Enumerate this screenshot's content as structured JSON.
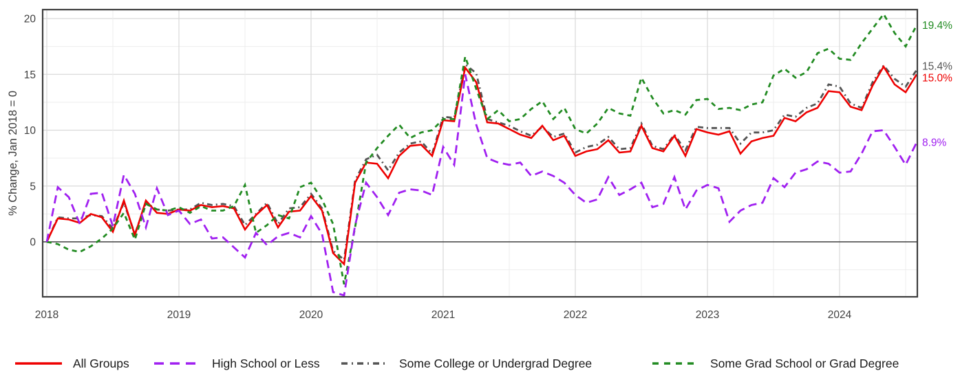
{
  "figure": {
    "ylabel": "% Change, Jan 2018 = 0",
    "background": "#ffffff",
    "axis_text_color": "#404040",
    "grid_major_color": "#d9d9d9",
    "grid_minor_color": "#ededed",
    "border_color": "#3d3d3d",
    "zero_line_color": "#404040"
  },
  "chart_data": {
    "type": "line",
    "title": "",
    "xlabel": "",
    "ylabel": "% Change, Jan 2018 = 0",
    "x_unit": "month",
    "x_start": "2018-01",
    "x_end": "2024-08",
    "x_tick_labels": [
      "2018",
      "2019",
      "2020",
      "2021",
      "2022",
      "2023",
      "2024"
    ],
    "y_ticks": [
      0,
      5,
      10,
      15,
      20
    ],
    "y_minor_ticks": [
      -2.5,
      2.5,
      7.5,
      12.5,
      17.5
    ],
    "ylim": [
      -4.9,
      20.8
    ],
    "grid": true,
    "legend_position": "bottom",
    "series": [
      {
        "name": "All Groups",
        "color": "#ee0000",
        "style": "solid",
        "end_label": "15.0%",
        "values": [
          0.0,
          2.1,
          2.0,
          1.7,
          2.5,
          2.2,
          0.9,
          3.7,
          0.6,
          3.7,
          2.6,
          2.5,
          2.9,
          2.8,
          3.3,
          3.1,
          3.2,
          3.0,
          1.1,
          2.4,
          3.3,
          1.3,
          2.7,
          2.8,
          4.1,
          2.8,
          -1.0,
          -2.0,
          5.3,
          7.1,
          7.0,
          5.7,
          7.7,
          8.6,
          8.7,
          7.7,
          10.9,
          10.8,
          15.6,
          14.3,
          10.7,
          10.6,
          10.1,
          9.6,
          9.3,
          10.4,
          9.1,
          9.5,
          7.7,
          8.1,
          8.3,
          9.1,
          8.0,
          8.1,
          10.4,
          8.4,
          8.1,
          9.5,
          7.7,
          10.1,
          9.8,
          9.6,
          9.9,
          7.9,
          9.0,
          9.3,
          9.5,
          11.1,
          10.8,
          11.6,
          12.0,
          13.5,
          13.4,
          12.1,
          11.8,
          14.0,
          15.7,
          14.1,
          13.4,
          15.0
        ]
      },
      {
        "name": "High School or Less",
        "color": "#a020f0",
        "style": "dashed",
        "end_label": "8.9%",
        "values": [
          0.0,
          4.9,
          4.0,
          1.6,
          4.3,
          4.4,
          1.4,
          6.0,
          4.3,
          1.3,
          4.8,
          2.4,
          2.8,
          1.6,
          2.0,
          0.3,
          0.4,
          -0.5,
          -1.4,
          0.8,
          -0.3,
          0.5,
          0.8,
          0.4,
          2.3,
          0.7,
          -4.5,
          -4.8,
          1.5,
          5.3,
          4.0,
          2.4,
          4.4,
          4.7,
          4.6,
          4.2,
          8.5,
          6.9,
          15.0,
          10.5,
          7.5,
          7.1,
          6.9,
          7.1,
          5.9,
          6.3,
          5.9,
          5.3,
          4.2,
          3.5,
          3.8,
          5.8,
          4.2,
          4.7,
          5.3,
          3.1,
          3.4,
          5.8,
          2.9,
          4.6,
          5.1,
          4.8,
          1.8,
          2.8,
          3.3,
          3.5,
          5.7,
          4.9,
          6.2,
          6.5,
          7.2,
          7.0,
          6.2,
          6.3,
          7.9,
          9.9,
          10.0,
          8.5,
          6.9,
          8.9
        ]
      },
      {
        "name": "Some College or Undergrad Degree",
        "color": "#545454",
        "style": "dashdot",
        "end_label": "15.4%",
        "values": [
          0.0,
          2.2,
          2.1,
          2.1,
          2.4,
          2.3,
          1.2,
          3.5,
          0.7,
          3.5,
          2.9,
          2.8,
          2.9,
          2.9,
          3.5,
          3.3,
          3.4,
          3.2,
          1.5,
          2.5,
          3.5,
          1.6,
          3.0,
          3.1,
          4.3,
          3.0,
          -0.8,
          -1.6,
          5.5,
          7.4,
          7.8,
          6.4,
          8.0,
          8.8,
          9.0,
          7.9,
          11.2,
          11.1,
          15.9,
          15.1,
          11.0,
          10.7,
          10.4,
          9.9,
          9.5,
          10.3,
          9.4,
          9.7,
          8.0,
          8.5,
          8.7,
          9.4,
          8.3,
          8.4,
          10.6,
          8.6,
          8.3,
          9.6,
          8.2,
          10.3,
          10.2,
          10.2,
          10.2,
          8.8,
          9.8,
          9.8,
          10.0,
          11.4,
          11.2,
          12.0,
          12.4,
          14.1,
          13.9,
          12.4,
          12.0,
          14.3,
          15.8,
          14.6,
          13.9,
          15.4
        ]
      },
      {
        "name": "Some Grad School or Grad Degree",
        "color": "#228b22",
        "style": "dashed-short",
        "end_label": "19.4%",
        "values": [
          0.0,
          -0.2,
          -0.7,
          -0.9,
          -0.4,
          0.3,
          1.2,
          2.6,
          0.2,
          3.4,
          2.9,
          2.8,
          3.1,
          2.6,
          3.2,
          2.8,
          2.8,
          3.2,
          5.1,
          0.8,
          1.5,
          2.4,
          2.1,
          4.9,
          5.3,
          3.8,
          1.6,
          -3.8,
          1.3,
          7.1,
          8.4,
          9.5,
          10.5,
          9.3,
          9.8,
          10.0,
          11.0,
          11.0,
          16.6,
          13.7,
          11.0,
          11.8,
          10.8,
          11.0,
          11.9,
          12.6,
          11.0,
          12.0,
          10.1,
          9.7,
          10.6,
          12.0,
          11.5,
          11.3,
          14.7,
          12.9,
          11.5,
          11.8,
          11.4,
          12.7,
          12.8,
          11.9,
          12.0,
          11.8,
          12.3,
          12.5,
          14.9,
          15.5,
          14.7,
          15.2,
          16.9,
          17.3,
          16.4,
          16.3,
          17.8,
          19.1,
          20.4,
          18.7,
          17.5,
          19.4
        ]
      }
    ]
  }
}
